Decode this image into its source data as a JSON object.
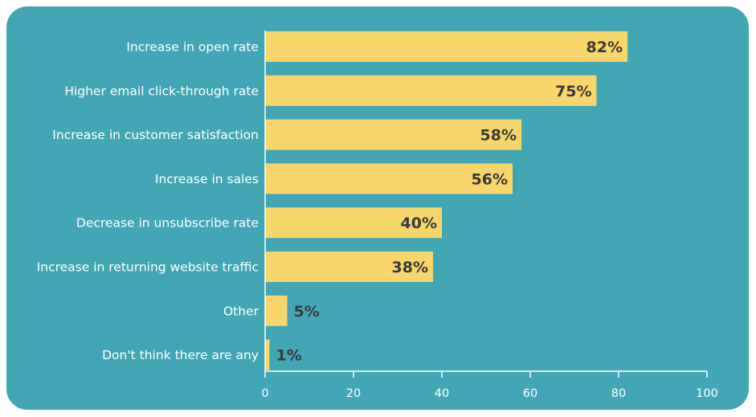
{
  "chart_data": {
    "type": "bar",
    "orientation": "horizontal",
    "categories": [
      "Increase in open rate",
      "Higher email click-through rate",
      "Increase in customer satisfaction",
      "Increase in sales",
      "Decrease in unsubscribe rate",
      "Increase in returning website traffic",
      "Other",
      "Don't think there are any"
    ],
    "values": [
      82,
      75,
      58,
      56,
      40,
      38,
      5,
      1
    ],
    "value_labels": [
      "82%",
      "75%",
      "58%",
      "56%",
      "40%",
      "38%",
      "5%",
      "1%"
    ],
    "xlim": [
      0,
      100
    ],
    "xticks": [
      0,
      20,
      40,
      60,
      80,
      100
    ],
    "title": "",
    "xlabel": "",
    "ylabel": "",
    "grid": false,
    "colors": {
      "background": "#43a6b4",
      "bar": "#f9d66b",
      "axis": "#ffffff",
      "label_text": "#ffffff",
      "value_text": "#3a3a3a"
    }
  }
}
